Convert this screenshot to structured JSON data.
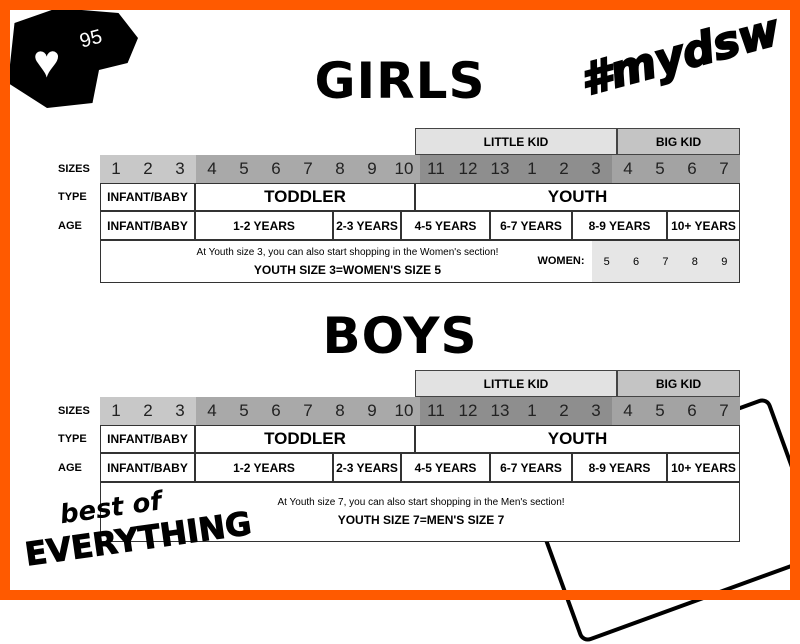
{
  "badge": {
    "likes": "95",
    "icon": "heart-icon"
  },
  "hashtag": "#mydsw",
  "logo_text": "best of EVERYTHING",
  "colors": {
    "frame": "#ff5a00",
    "sizes_infant": "#c8c8c8",
    "sizes_toddler": "#a9a9a9",
    "sizes_youth": "#8e8e8e",
    "sizes_bigkid": "#a3a3a3",
    "little_kid": "#e2e2e2",
    "big_kid": "#c4c4c4"
  },
  "row_labels": {
    "sizes": "SIZES",
    "type": "TYPE",
    "age": "AGE"
  },
  "sections": {
    "girls": {
      "title": "GIRLS",
      "little_kid": "LITTLE KID",
      "big_kid": "BIG KID",
      "sizes": [
        "1",
        "2",
        "3",
        "4",
        "5",
        "6",
        "7",
        "8",
        "9",
        "10",
        "11",
        "12",
        "13",
        "1",
        "2",
        "3",
        "4",
        "5",
        "6",
        "7"
      ],
      "types": [
        "INFANT/BABY",
        "TODDLER",
        "YOUTH"
      ],
      "ages": [
        "INFANT/BABY",
        "1-2 YEARS",
        "2-3 YEARS",
        "4-5 YEARS",
        "6-7 YEARS",
        "8-9 YEARS",
        "10+ YEARS"
      ],
      "note": "At Youth size 3, you can also start shopping in the Women's section!",
      "note_bold": "YOUTH SIZE 3=WOMEN'S SIZE 5",
      "women_label": "WOMEN:",
      "women_sizes": [
        "5",
        "6",
        "7",
        "8",
        "9"
      ]
    },
    "boys": {
      "title": "BOYS",
      "little_kid": "LITTLE KID",
      "big_kid": "BIG KID",
      "sizes": [
        "1",
        "2",
        "3",
        "4",
        "5",
        "6",
        "7",
        "8",
        "9",
        "10",
        "11",
        "12",
        "13",
        "1",
        "2",
        "3",
        "4",
        "5",
        "6",
        "7"
      ],
      "types": [
        "INFANT/BABY",
        "TODDLER",
        "YOUTH"
      ],
      "ages": [
        "INFANT/BABY",
        "1-2 YEARS",
        "2-3 YEARS",
        "4-5 YEARS",
        "6-7 YEARS",
        "8-9 YEARS",
        "10+ YEARS"
      ],
      "note": "At Youth size 7, you can also start shopping in the Men's section!",
      "note_bold": "YOUTH SIZE 7=MEN'S SIZE 7"
    }
  }
}
